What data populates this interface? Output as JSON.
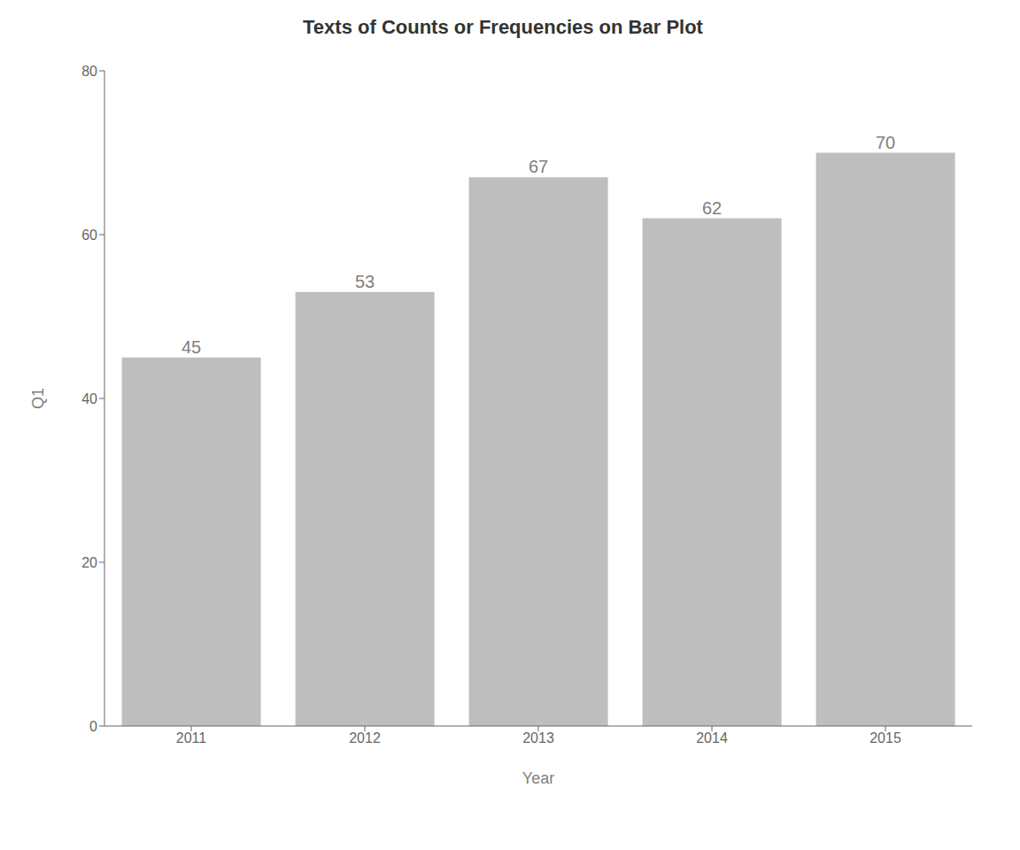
{
  "chart_data": {
    "type": "bar",
    "title": "Texts of Counts or Frequencies on Bar Plot",
    "xlabel": "Year",
    "ylabel": "Q1",
    "categories": [
      "2011",
      "2012",
      "2013",
      "2014",
      "2015"
    ],
    "values": [
      45,
      53,
      67,
      62,
      70
    ],
    "color": "#bebebe",
    "ylim": [
      0,
      80
    ],
    "yticks": [
      0,
      20,
      40,
      60,
      80
    ],
    "grid": false,
    "data_labels": true
  }
}
